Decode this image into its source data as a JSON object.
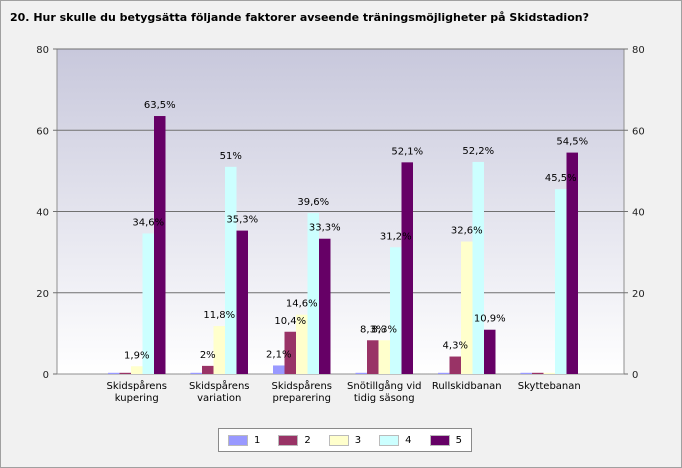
{
  "title": "20. Hur skulle du betygsätta följande faktorer avseende träningsmöjligheter på Skidstadion?",
  "chart_data": {
    "type": "bar",
    "categories": [
      [
        "Skidspårens",
        "kupering"
      ],
      [
        "Skidspårens",
        "variation"
      ],
      [
        "Skidspårens",
        "preparering"
      ],
      [
        "Snötillgång vid",
        "tidig säsong"
      ],
      [
        "Rullskidbanan"
      ],
      [
        "Skyttebanan"
      ]
    ],
    "series": [
      {
        "name": "1",
        "color": "#9999ff",
        "values": [
          0,
          0,
          2.1,
          0,
          0,
          0
        ],
        "labels": [
          "",
          "",
          "2,1%",
          "",
          "",
          ""
        ]
      },
      {
        "name": "2",
        "color": "#993366",
        "values": [
          0,
          2,
          10.4,
          8.3,
          4.3,
          0
        ],
        "labels": [
          "",
          "2%",
          "10,4%",
          "8,3%",
          "4,3%",
          ""
        ]
      },
      {
        "name": "3",
        "color": "#ffffcc",
        "values": [
          1.9,
          11.8,
          14.6,
          8.3,
          32.6,
          0
        ],
        "labels": [
          "1,9%",
          "11,8%",
          "14,6%",
          "8,3%",
          "32,6%",
          ""
        ]
      },
      {
        "name": "4",
        "color": "#ccffff",
        "values": [
          34.6,
          51,
          39.6,
          31.2,
          52.2,
          45.5
        ],
        "labels": [
          "34,6%",
          "51%",
          "39,6%",
          "31,2%",
          "52,2%",
          "45,5%"
        ]
      },
      {
        "name": "5",
        "color": "#660066",
        "values": [
          63.5,
          35.3,
          33.3,
          52.1,
          10.9,
          54.5
        ],
        "labels": [
          "63,5%",
          "35,3%",
          "33,3%",
          "52,1%",
          "10,9%",
          "54,5%"
        ]
      }
    ],
    "yticks": [
      0,
      20,
      40,
      60,
      80
    ],
    "ylim": [
      0,
      80
    ],
    "legend_position": "bottom"
  }
}
